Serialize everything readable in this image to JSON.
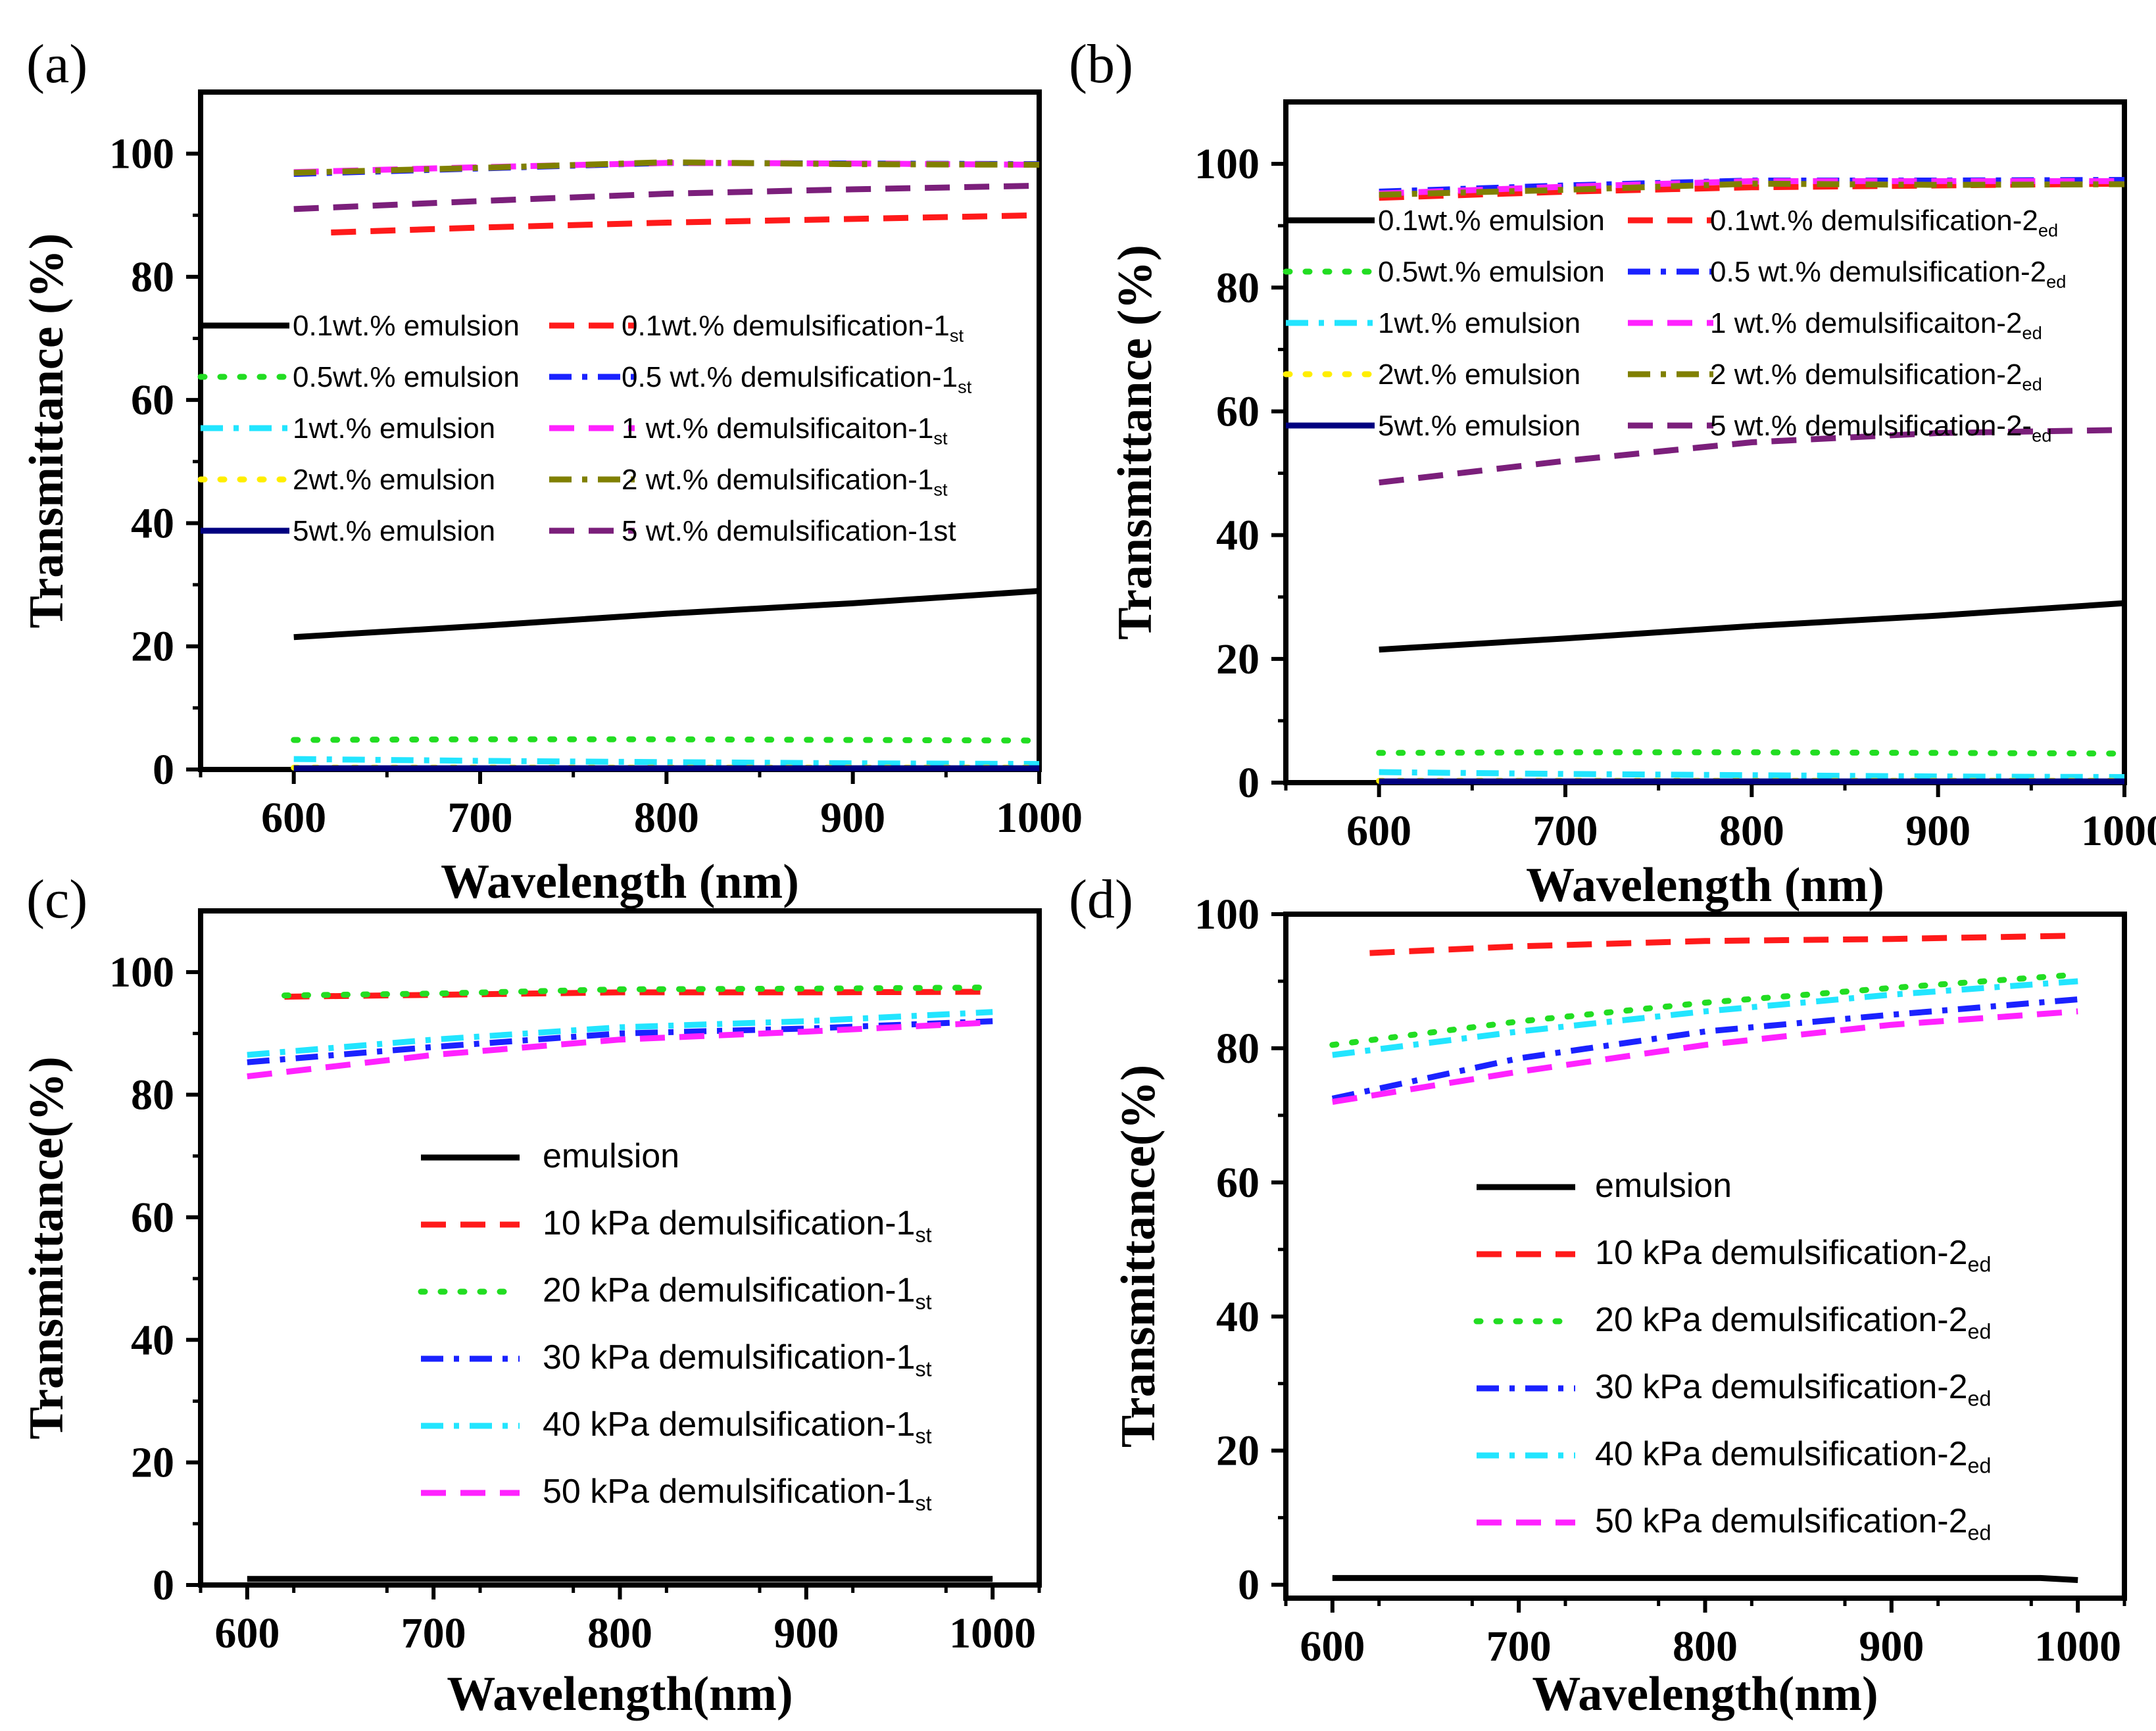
{
  "chart_data": [
    {
      "panel": "(a)",
      "type": "line",
      "xlabel": "Wavelength (nm)",
      "ylabel": "Transmittance (%)",
      "xlim": [
        550,
        1000
      ],
      "ylim": [
        0,
        110
      ],
      "xticks": [
        600,
        700,
        800,
        900,
        1000
      ],
      "yticks": [
        0,
        20,
        40,
        60,
        80,
        100
      ],
      "legend_position": "center-left",
      "series": [
        {
          "name": "0.1wt.% emulsion",
          "color": "#000000",
          "dash": "solid",
          "x": [
            600,
            700,
            800,
            900,
            1000
          ],
          "values": [
            21.5,
            23.3,
            25.3,
            27,
            29
          ]
        },
        {
          "name": "0.1wt.% demulsification-1",
          "sub": "st",
          "color": "#ff1a1a",
          "dash": "dash",
          "x": [
            620,
            700,
            800,
            900,
            1000
          ],
          "values": [
            87.2,
            88.0,
            88.8,
            89.4,
            90.0
          ]
        },
        {
          "name": "0.5wt.% emulsion",
          "color": "#22dd22",
          "dash": "dot",
          "x": [
            600,
            700,
            800,
            900,
            1000
          ],
          "values": [
            4.8,
            4.9,
            4.9,
            4.8,
            4.7
          ]
        },
        {
          "name": "0.5 wt.% demulsification-1",
          "sub": "st",
          "color": "#1a22ff",
          "dash": "dashdot",
          "x": [
            600,
            700,
            800,
            900,
            1000
          ],
          "values": [
            96.7,
            97.6,
            98.5,
            98.4,
            98.3
          ]
        },
        {
          "name": "1wt.% emulsion",
          "color": "#22e5ff",
          "dash": "dashdot",
          "x": [
            600,
            700,
            800,
            900,
            1000
          ],
          "values": [
            1.7,
            1.4,
            1.2,
            1.0,
            0.9
          ]
        },
        {
          "name": "1 wt.% demulsificaiton-1",
          "sub": "st",
          "color": "#ff22ff",
          "dash": "dash",
          "x": [
            600,
            700,
            800,
            900,
            1000
          ],
          "values": [
            97.0,
            97.8,
            98.5,
            98.4,
            98.2
          ]
        },
        {
          "name": "2wt.% emulsion",
          "color": "#ffee00",
          "dash": "dot",
          "x": [
            600,
            700,
            800,
            900,
            1000
          ],
          "values": [
            0.3,
            0.3,
            0.3,
            0.3,
            0.3
          ]
        },
        {
          "name": "2 wt.% demulsification-1",
          "sub": "st",
          "color": "#808000",
          "dash": "dashdot",
          "x": [
            600,
            700,
            800,
            900,
            1000
          ],
          "values": [
            96.9,
            97.7,
            98.6,
            98.3,
            98.2
          ]
        },
        {
          "name": "5wt.% emulsion",
          "color": "#000080",
          "dash": "solid",
          "x": [
            600,
            700,
            800,
            900,
            1000
          ],
          "values": [
            0.2,
            0.2,
            0.2,
            0.2,
            0.2
          ]
        },
        {
          "name": "5 wt.% demulsification-1st",
          "color": "#7b1f7b",
          "dash": "dash",
          "x": [
            600,
            700,
            800,
            900,
            1000
          ],
          "values": [
            91.0,
            92.3,
            93.5,
            94.2,
            94.8
          ]
        }
      ]
    },
    {
      "panel": "(b)",
      "type": "line",
      "xlabel": "Wavelength (nm)",
      "ylabel": "Transmittance (%)",
      "xlim": [
        550,
        1000
      ],
      "ylim": [
        0,
        110
      ],
      "xticks": [
        600,
        700,
        800,
        900,
        1000
      ],
      "yticks": [
        0,
        20,
        40,
        60,
        80,
        100
      ],
      "legend_position": "upper-left",
      "series": [
        {
          "name": "0.1wt.% emulsion",
          "color": "#000000",
          "dash": "solid",
          "x": [
            600,
            700,
            800,
            900,
            1000
          ],
          "values": [
            21.5,
            23.3,
            25.3,
            27,
            29
          ]
        },
        {
          "name": "0.1wt.% demulsification-2",
          "sub": "ed",
          "color": "#ff1a1a",
          "dash": "dash",
          "x": [
            600,
            700,
            800,
            900,
            1000
          ],
          "values": [
            94.5,
            95.5,
            96.2,
            96.5,
            96.8
          ]
        },
        {
          "name": "0.5wt.% emulsion",
          "color": "#22dd22",
          "dash": "dot",
          "x": [
            600,
            700,
            800,
            900,
            1000
          ],
          "values": [
            4.8,
            4.9,
            4.9,
            4.8,
            4.7
          ]
        },
        {
          "name": "0.5 wt.% demulsification-2",
          "sub": "ed",
          "color": "#1a22ff",
          "dash": "dashdot",
          "x": [
            600,
            700,
            800,
            900,
            1000
          ],
          "values": [
            95.5,
            96.5,
            97.3,
            97.3,
            97.4
          ]
        },
        {
          "name": "1wt.% emulsion",
          "color": "#22e5ff",
          "dash": "dashdot",
          "x": [
            600,
            700,
            800,
            900,
            1000
          ],
          "values": [
            1.7,
            1.4,
            1.2,
            1.0,
            0.9
          ]
        },
        {
          "name": "1 wt.% demulsificaiton-2",
          "sub": "ed",
          "color": "#ff22ff",
          "dash": "dash",
          "x": [
            600,
            700,
            800,
            900,
            1000
          ],
          "values": [
            95.2,
            96.3,
            97.2,
            97.2,
            97.2
          ]
        },
        {
          "name": "2wt.% emulsion",
          "color": "#ffee00",
          "dash": "dot",
          "x": [
            600,
            700,
            800,
            900,
            1000
          ],
          "values": [
            0.3,
            0.3,
            0.3,
            0.3,
            0.3
          ]
        },
        {
          "name": "2 wt.% demulsification-2",
          "sub": "ed",
          "color": "#808000",
          "dash": "dashdot",
          "x": [
            600,
            700,
            800,
            900,
            1000
          ],
          "values": [
            95.0,
            95.8,
            96.8,
            96.6,
            96.7
          ]
        },
        {
          "name": "5wt.% emulsion",
          "color": "#000080",
          "dash": "solid",
          "x": [
            600,
            700,
            800,
            900,
            1000
          ],
          "values": [
            0.2,
            0.2,
            0.2,
            0.2,
            0.2
          ]
        },
        {
          "name": "5 wt.% demulsification-2-",
          "sub": "ed",
          "color": "#7b1f7b",
          "dash": "dash",
          "x": [
            600,
            700,
            800,
            900,
            1000
          ],
          "values": [
            48.5,
            52.0,
            55.0,
            56.5,
            57.0
          ]
        }
      ]
    },
    {
      "panel": "(c)",
      "type": "line",
      "xlabel": "Wavelength(nm)",
      "ylabel": "Transmittance(%)",
      "xlim": [
        575,
        1025
      ],
      "ylim": [
        0,
        110
      ],
      "xticks": [
        600,
        700,
        800,
        900,
        1000
      ],
      "yticks": [
        0,
        20,
        40,
        60,
        80,
        100
      ],
      "legend_position": "center",
      "series": [
        {
          "name": "emulsion",
          "color": "#000000",
          "dash": "solid",
          "x": [
            600,
            700,
            800,
            900,
            1000
          ],
          "values": [
            1.0,
            1.0,
            1.0,
            1.0,
            1.0
          ]
        },
        {
          "name": "10 kPa demulsification-1",
          "sub": "st",
          "color": "#ff1a1a",
          "dash": "dash",
          "x": [
            620,
            700,
            800,
            900,
            1000
          ],
          "values": [
            96.0,
            96.3,
            96.7,
            96.7,
            96.8
          ]
        },
        {
          "name": "20 kPa demulsification-1",
          "sub": "st",
          "color": "#22dd22",
          "dash": "dot",
          "x": [
            620,
            700,
            800,
            900,
            1000
          ],
          "values": [
            96.2,
            96.5,
            97.2,
            97.3,
            97.5
          ]
        },
        {
          "name": "30 kPa demulsification-1",
          "sub": "st",
          "color": "#1a22ff",
          "dash": "dashdot",
          "x": [
            600,
            700,
            800,
            900,
            1000
          ],
          "values": [
            85.3,
            87.8,
            90.0,
            90.8,
            92.0
          ]
        },
        {
          "name": "40 kPa demulsification-1",
          "sub": "st",
          "color": "#22e5ff",
          "dash": "dashdot",
          "x": [
            600,
            700,
            800,
            900,
            1000
          ],
          "values": [
            86.5,
            89.0,
            91.0,
            92.0,
            93.5
          ]
        },
        {
          "name": "50 kPa demulsification-1",
          "sub": "st",
          "color": "#ff22ff",
          "dash": "dash",
          "x": [
            600,
            700,
            800,
            900,
            1000
          ],
          "values": [
            83.0,
            86.5,
            89.0,
            90.3,
            91.8
          ]
        }
      ]
    },
    {
      "panel": "(d)",
      "type": "line",
      "xlabel": "Wavelength(nm)",
      "ylabel": "Transmittance(%)",
      "xlim": [
        575,
        1025
      ],
      "ylim": [
        -2,
        100
      ],
      "xticks": [
        600,
        700,
        800,
        900,
        1000
      ],
      "yticks": [
        0,
        20,
        40,
        60,
        80,
        100
      ],
      "legend_position": "lower-center",
      "series": [
        {
          "name": "emulsion",
          "color": "#000000",
          "dash": "solid",
          "x": [
            600,
            700,
            800,
            900,
            980,
            1000
          ],
          "values": [
            1.0,
            1.0,
            1.0,
            1.0,
            1.0,
            0.7
          ]
        },
        {
          "name": "10 kPa demulsification-2",
          "sub": "ed",
          "color": "#ff1a1a",
          "dash": "dash",
          "x": [
            620,
            700,
            800,
            900,
            1000
          ],
          "values": [
            94.2,
            95.2,
            96.0,
            96.3,
            96.8
          ]
        },
        {
          "name": "20 kPa demulsification-2",
          "sub": "ed",
          "color": "#22dd22",
          "dash": "dot",
          "x": [
            600,
            700,
            800,
            900,
            1000
          ],
          "values": [
            80.5,
            84.0,
            86.8,
            89.0,
            91.0
          ]
        },
        {
          "name": "30 kPa demulsification-2",
          "sub": "ed",
          "color": "#1a22ff",
          "dash": "dashdot",
          "x": [
            600,
            700,
            800,
            900,
            1000
          ],
          "values": [
            72.5,
            78.5,
            82.5,
            85.0,
            87.3
          ]
        },
        {
          "name": "40 kPa demulsification-2",
          "sub": "ed",
          "color": "#22e5ff",
          "dash": "dashdot",
          "x": [
            600,
            700,
            800,
            900,
            1000
          ],
          "values": [
            79.0,
            82.5,
            85.5,
            88.0,
            90.0
          ]
        },
        {
          "name": "50 kPa demulsification-2",
          "sub": "ed",
          "color": "#ff22ff",
          "dash": "dash",
          "x": [
            600,
            700,
            800,
            900,
            1000
          ],
          "values": [
            72.0,
            76.5,
            80.5,
            83.5,
            85.5
          ]
        }
      ]
    }
  ]
}
